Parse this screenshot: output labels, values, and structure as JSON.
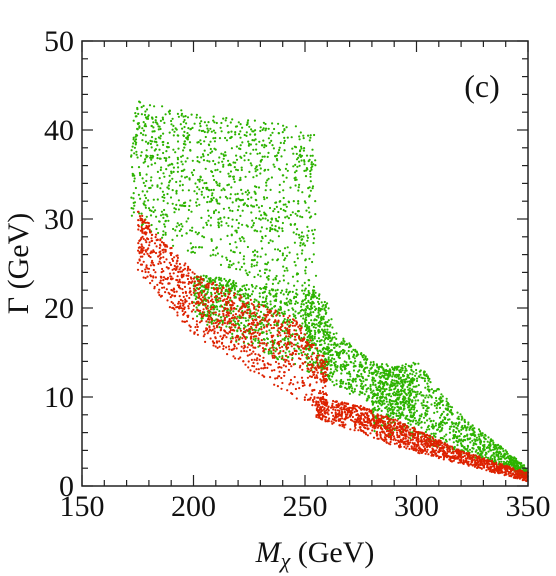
{
  "chart_data": {
    "type": "scatter",
    "panel_label": "(c)",
    "xlabel": {
      "symbol": "M",
      "subscript": "χ",
      "unit": " (GeV)"
    },
    "ylabel": "Γ (GeV)",
    "xlim": [
      150,
      350
    ],
    "ylim": [
      0,
      50
    ],
    "x_ticks": [
      150,
      200,
      250,
      300,
      350
    ],
    "y_ticks": [
      0,
      10,
      20,
      30,
      40,
      50
    ],
    "x_minor_step": 10,
    "y_minor_step": 2,
    "grid": false,
    "legend": "none",
    "series": [
      {
        "color": "#2db300",
        "regions": [
          {
            "xmin": 172,
            "xmax": 255,
            "lower": [
              [
                172,
                30
              ],
              [
                190,
                27
              ],
              [
                210,
                25
              ],
              [
                230,
                23
              ],
              [
                245,
                21
              ],
              [
                255,
                19
              ]
            ],
            "upper": [
              [
                172,
                43.5
              ],
              [
                190,
                42.5
              ],
              [
                210,
                41.5
              ],
              [
                230,
                41
              ],
              [
                245,
                40.5
              ],
              [
                255,
                40
              ]
            ]
          },
          {
            "xmin": 200,
            "xmax": 262,
            "lower": [
              [
                200,
                19
              ],
              [
                220,
                16
              ],
              [
                240,
                14
              ],
              [
                255,
                13
              ],
              [
                262,
                12
              ]
            ],
            "upper": [
              [
                200,
                24
              ],
              [
                220,
                23
              ],
              [
                240,
                22
              ],
              [
                255,
                22
              ],
              [
                262,
                20
              ]
            ]
          },
          {
            "xmin": 250,
            "xmax": 300,
            "lower": [
              [
                250,
                13
              ],
              [
                265,
                11
              ],
              [
                280,
                9
              ],
              [
                300,
                6.5
              ]
            ],
            "upper": [
              [
                250,
                22
              ],
              [
                265,
                17
              ],
              [
                280,
                14
              ],
              [
                300,
                13
              ]
            ]
          },
          {
            "xmin": 280,
            "xmax": 350,
            "lower": [
              [
                280,
                6
              ],
              [
                300,
                5
              ],
              [
                320,
                3.5
              ],
              [
                340,
                2
              ],
              [
                350,
                1
              ]
            ],
            "upper": [
              [
                280,
                13
              ],
              [
                300,
                14
              ],
              [
                320,
                8
              ],
              [
                340,
                4
              ],
              [
                350,
                2
              ]
            ]
          }
        ]
      },
      {
        "color": "#dd2200",
        "regions": [
          {
            "xmin": 175,
            "xmax": 260,
            "lower": [
              [
                175,
                24
              ],
              [
                200,
                17
              ],
              [
                225,
                13
              ],
              [
                245,
                10
              ],
              [
                260,
                8
              ]
            ],
            "upper": [
              [
                175,
                31
              ],
              [
                200,
                24
              ],
              [
                225,
                21
              ],
              [
                245,
                19
              ],
              [
                260,
                14
              ]
            ]
          },
          {
            "xmin": 255,
            "xmax": 350,
            "lower": [
              [
                255,
                7.5
              ],
              [
                275,
                6
              ],
              [
                295,
                4
              ],
              [
                320,
                2.5
              ],
              [
                350,
                0.5
              ]
            ],
            "upper": [
              [
                255,
                10
              ],
              [
                275,
                9
              ],
              [
                295,
                7
              ],
              [
                320,
                4
              ],
              [
                350,
                1.5
              ]
            ]
          }
        ]
      }
    ]
  }
}
